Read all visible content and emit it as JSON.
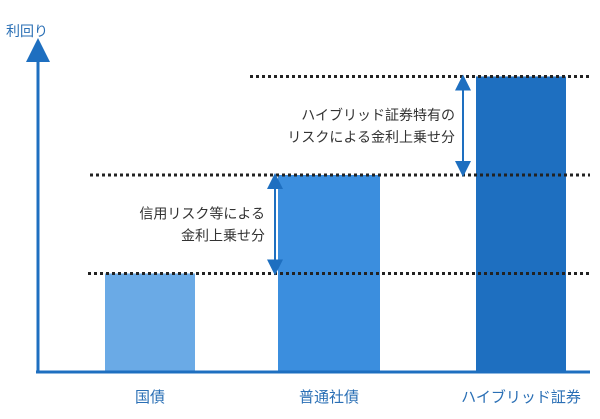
{
  "chart_data": {
    "type": "bar",
    "title": "",
    "ylabel": "利回り",
    "xlabel": "",
    "categories": [
      "国債",
      "普通社債",
      "ハイブリッド証券"
    ],
    "values": [
      1,
      2,
      3
    ],
    "ylim": [
      0,
      3.4
    ],
    "bar_colors": [
      "#6aaae6",
      "#3b8ede",
      "#1e6fc0"
    ],
    "axis_color": "#1e6fc0",
    "grid": false,
    "annotations": [
      {
        "lines": [
          "信用リスク等による",
          "金利上乗せ分"
        ],
        "from": 1,
        "to": 2
      },
      {
        "lines": [
          "ハイブリッド証券特有の",
          "リスクによる金利上乗せ分"
        ],
        "from": 2,
        "to": 3
      }
    ]
  }
}
